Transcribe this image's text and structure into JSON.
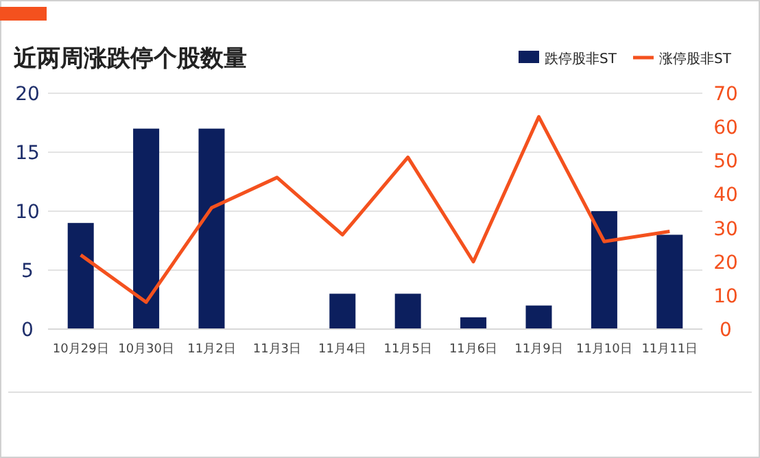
{
  "chart_data": {
    "type": "bar",
    "title": "近两周涨跌停个股数量",
    "categories": [
      "10月29日",
      "10月30日",
      "11月2日",
      "11月3日",
      "11月4日",
      "11月5日",
      "11月6日",
      "11月9日",
      "11月10日",
      "11月11日"
    ],
    "series": [
      {
        "name": "跌停股非ST",
        "color": "#0c1f5e",
        "values": [
          9,
          17,
          17,
          0,
          3,
          3,
          1,
          2,
          10,
          8
        ]
      },
      {
        "name": "涨停股非ST",
        "type": "line",
        "axis": "y2",
        "color": "#f4511e",
        "values": [
          22,
          8,
          36,
          45,
          28,
          51,
          20,
          63,
          26,
          29
        ]
      }
    ],
    "ylim": [
      0,
      20
    ],
    "yticks": [
      0,
      5,
      10,
      15,
      20
    ],
    "y2lim": [
      0,
      70
    ],
    "y2ticks": [
      0,
      10,
      20,
      30,
      40,
      50,
      60,
      70
    ],
    "grid": "y",
    "legend": "top right",
    "marker": "none",
    "line_style": "solid"
  }
}
